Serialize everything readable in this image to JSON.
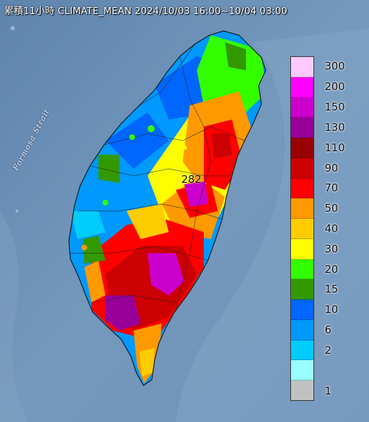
{
  "header": {
    "title": "累積11小時 CLIMATE_MEAN 2024/10/03 16:00~10/04 03:00"
  },
  "map": {
    "sea_label": "Formosa Strait",
    "peak_value": "282"
  },
  "legend": {
    "unit_labels": [
      "300",
      "200",
      "150",
      "130",
      "110",
      "90",
      "70",
      "50",
      "40",
      "30",
      "20",
      "15",
      "10",
      "6",
      "2",
      "1"
    ],
    "colors": [
      "#fec9fe",
      "#fe00fe",
      "#cc00cc",
      "#990099",
      "#990000",
      "#cc0000",
      "#fe0000",
      "#fe9900",
      "#fecc00",
      "#fefe00",
      "#33fe00",
      "#339900",
      "#0066fe",
      "#0099fe",
      "#00ccfe",
      "#99fefe",
      "#c1c1c1"
    ]
  }
}
